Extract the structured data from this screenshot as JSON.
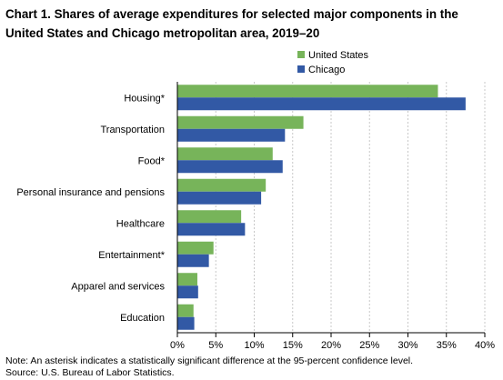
{
  "chart_data": {
    "type": "bar",
    "orientation": "horizontal",
    "title": "Chart 1. Shares of average expenditures for selected major components in the United States and Chicago metropolitan area, 2019–20",
    "categories": [
      "Housing*",
      "Transportation",
      "Food*",
      "Personal insurance and pensions",
      "Healthcare",
      "Entertainment*",
      "Apparel and services",
      "Education"
    ],
    "series": [
      {
        "name": "United States",
        "color": "#77b45a",
        "values": [
          33.9,
          16.4,
          12.4,
          11.5,
          8.3,
          4.7,
          2.6,
          2.1
        ]
      },
      {
        "name": "Chicago",
        "color": "#3259a5",
        "values": [
          37.5,
          14.0,
          13.7,
          10.9,
          8.8,
          4.1,
          2.7,
          2.2
        ]
      }
    ],
    "xlim": [
      0,
      40
    ],
    "x_ticks": [
      "0%",
      "5%",
      "10%",
      "15%",
      "20%",
      "25%",
      "30%",
      "35%",
      "40%"
    ],
    "grid": true,
    "legend_position": "top-right",
    "note": "Note: An asterisk indicates a statistically significant difference at the 95-percent confidence level.",
    "source": "Source: U.S. Bureau of Labor Statistics."
  }
}
